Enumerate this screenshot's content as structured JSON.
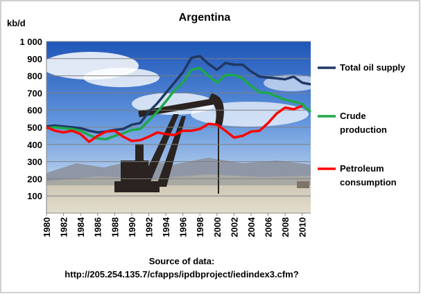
{
  "chart_data": {
    "type": "line",
    "title": "Argentina",
    "ylabel": "kb/d",
    "xlabel": "",
    "ylim": [
      0,
      1000
    ],
    "xlim": [
      1980,
      2011
    ],
    "yticks": [
      "100",
      "200",
      "300",
      "400",
      "500",
      "600",
      "700",
      "800",
      "900",
      "1 000"
    ],
    "xticks": [
      "1980",
      "1982",
      "1984",
      "1986",
      "1988",
      "1990",
      "1992",
      "1994",
      "1996",
      "1998",
      "2000",
      "2002",
      "2004",
      "2006",
      "2008",
      "2010"
    ],
    "x": [
      1980,
      1981,
      1982,
      1983,
      1984,
      1985,
      1986,
      1987,
      1988,
      1989,
      1990,
      1991,
      1992,
      1993,
      1994,
      1995,
      1996,
      1997,
      1998,
      1999,
      2000,
      2001,
      2002,
      2003,
      2004,
      2005,
      2006,
      2007,
      2008,
      2009,
      2010,
      2011
    ],
    "series": [
      {
        "name": "Total oil supply",
        "color": "#1f3864",
        "values": [
          505,
          510,
          505,
          500,
          495,
          480,
          470,
          475,
          485,
          490,
          515,
          525,
          590,
          640,
          700,
          760,
          820,
          905,
          915,
          870,
          835,
          875,
          865,
          865,
          825,
          795,
          790,
          785,
          780,
          795,
          760,
          750
        ]
      },
      {
        "name": "Crude production",
        "color": "#1ea84a",
        "values": [
          495,
          500,
          495,
          490,
          480,
          455,
          435,
          430,
          450,
          465,
          485,
          490,
          540,
          590,
          650,
          715,
          760,
          835,
          845,
          800,
          760,
          805,
          805,
          785,
          740,
          705,
          700,
          680,
          660,
          650,
          635,
          590
        ]
      },
      {
        "name": "Petroleum consumption",
        "color": "#ff0000",
        "values": [
          500,
          480,
          470,
          480,
          460,
          415,
          450,
          475,
          480,
          445,
          420,
          425,
          445,
          470,
          460,
          455,
          480,
          480,
          490,
          520,
          515,
          480,
          440,
          450,
          475,
          480,
          525,
          580,
          615,
          605,
          625,
          null
        ]
      }
    ],
    "legend": [
      {
        "lines": [
          "Total oil supply"
        ]
      },
      {
        "lines": [
          "Crude",
          "production"
        ]
      },
      {
        "lines": [
          "Petroleum",
          "consumption"
        ]
      }
    ],
    "legend_placement": "right",
    "grid": true,
    "source_lines": [
      "Source of data:",
      "http://205.254.135.7/cfapps/ipdbproject/iedindex3.cfm?"
    ]
  }
}
